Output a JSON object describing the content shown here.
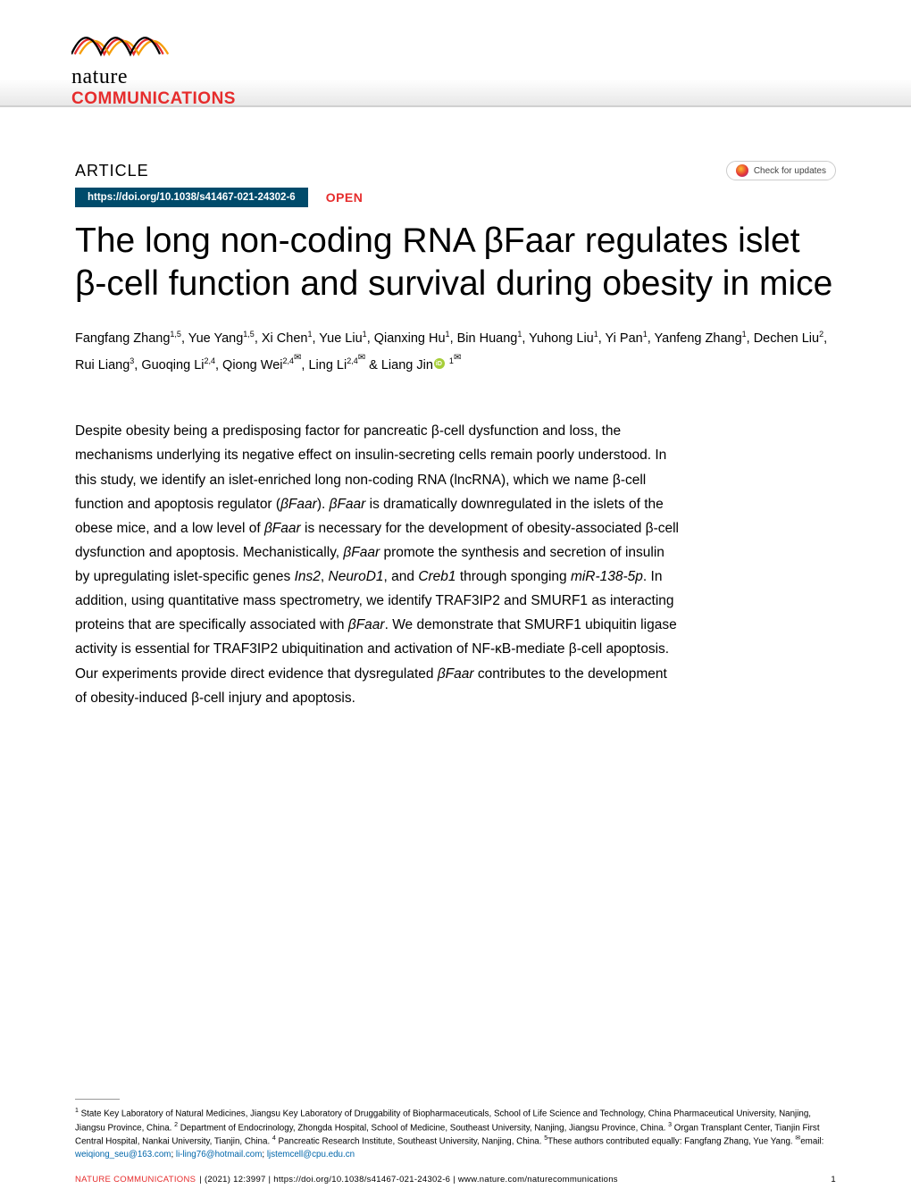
{
  "journal": {
    "name_top": "nature",
    "name_bottom": "COMMUNICATIONS",
    "wave_colors": [
      "#e62c2c",
      "#f59e0b",
      "#000000"
    ]
  },
  "header": {
    "article_label": "ARTICLE",
    "check_updates": "Check for updates",
    "doi": "https://doi.org/10.1038/s41467-021-24302-6",
    "open_label": "OPEN"
  },
  "title": "The long non-coding RNA βFaar regulates islet β-cell function and survival during obesity in mice",
  "authors_html": "Fangfang Zhang<sup>1,5</sup>, Yue Yang<sup>1,5</sup>, Xi Chen<sup>1</sup>, Yue Liu<sup>1</sup>, Qianxing Hu<sup>1</sup>, Bin Huang<sup>1</sup>, Yuhong Liu<sup>1</sup>, Yi Pan<sup>1</sup>, Yanfeng Zhang<sup>1</sup>, Dechen Liu<sup>2</sup>, Rui Liang<sup>3</sup>, Guoqing Li<sup>2,4</sup>, Qiong Wei<sup>2,4<span class=\"envelope\">✉</span></sup>, Ling Li<sup>2,4<span class=\"envelope\">✉</span></sup> &amp; Liang Jin<span class=\"orcid\"></span> <sup>1<span class=\"envelope\">✉</span></sup>",
  "abstract_html": "Despite obesity being a predisposing factor for pancreatic β-cell dysfunction and loss, the mechanisms underlying its negative effect on insulin-secreting cells remain poorly understood. In this study, we identify an islet-enriched long non-coding RNA (lncRNA), which we name β-cell function and apoptosis regulator (<em>βFaar</em>). <em>βFaar</em> is dramatically downregulated in the islets of the obese mice, and a low level of <em>βFaar</em> is necessary for the development of obesity-associated β-cell dysfunction and apoptosis. Mechanistically, <em>βFaar</em> promote the synthesis and secretion of insulin by upregulating islet-specific genes <em>Ins2</em>, <em>NeuroD1</em>, and <em>Creb1</em> through sponging <em>miR-138-5p</em>. In addition, using quantitative mass spectrometry, we identify TRAF3IP2 and SMURF1 as interacting proteins that are specifically associated with <em>βFaar</em>. We demonstrate that SMURF1 ubiquitin ligase activity is essential for TRAF3IP2 ubiquitination and activation of NF-κB-mediate β-cell apoptosis. Our experiments provide direct evidence that dysregulated <em>βFaar</em> contributes to the development of obesity-induced β-cell injury and apoptosis.",
  "affiliations_html": "<sup>1</sup> State Key Laboratory of Natural Medicines, Jiangsu Key Laboratory of Druggability of Biopharmaceuticals, School of Life Science and Technology, China Pharmaceutical University, Nanjing, Jiangsu Province, China. <sup>2</sup> Department of Endocrinology, Zhongda Hospital, School of Medicine, Southeast University, Nanjing, Jiangsu Province, China. <sup>3</sup> Organ Transplant Center, Tianjin First Central Hospital, Nankai University, Tianjin, China. <sup>4</sup> Pancreatic Research Institute, Southeast University, Nanjing, China. <sup>5</sup>These authors contributed equally: Fangfang Zhang, Yue Yang. <sup>✉</sup>email: <a>weiqiong_seu@163.com</a>; <a>li-ling76@hotmail.com</a>; <a>ljstemcell@cpu.edu.cn</a>",
  "footer": {
    "journal": "NATURE COMMUNICATIONS",
    "citation": "|     (2021) 12:3997 | https://doi.org/10.1038/s41467-021-24302-6 | www.nature.com/naturecommunications",
    "page": "1"
  },
  "colors": {
    "brand_red": "#e62c2c",
    "doi_bg": "#004b6b",
    "link": "#0066aa",
    "orcid": "#a6ce39",
    "rule_gray": "#999999",
    "border_gray": "#cccccc"
  },
  "typography": {
    "title_fontsize": 39,
    "title_weight": 300,
    "body_fontsize": 15.5,
    "authors_fontsize": 14.5,
    "affil_fontsize": 9.8,
    "footer_fontsize": 9.5
  }
}
